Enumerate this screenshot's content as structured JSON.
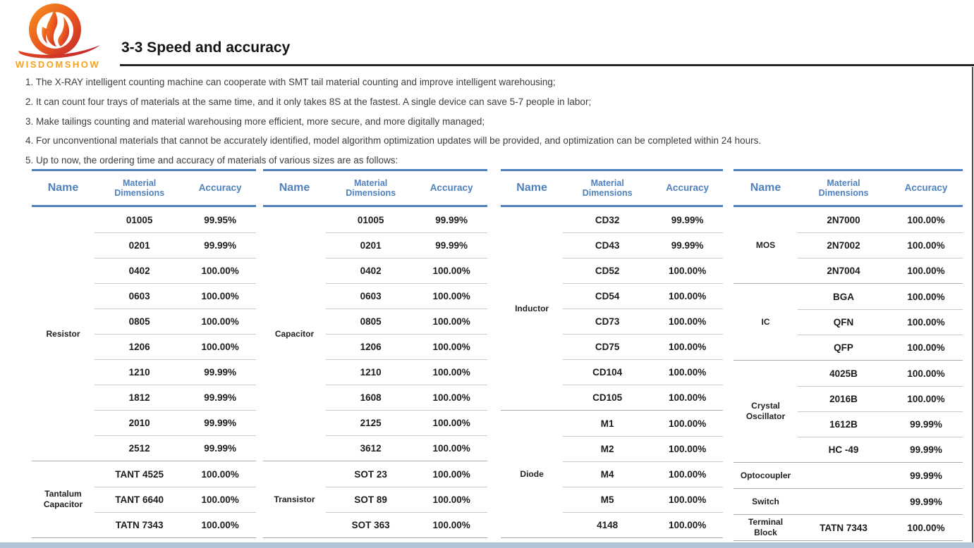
{
  "logo": {
    "text": "WISDOMSHOW",
    "color_orange": "#F7941D",
    "color_red": "#C1272D"
  },
  "header": {
    "title": "3-3 Speed and accuracy"
  },
  "intro": {
    "items": [
      "1. The X-RAY intelligent counting machine can cooperate with SMT tail material counting and improve intelligent warehousing;",
      "2. It can count four trays of materials at the same time, and it only takes 8S at the fastest. A single device can save 5-7 people in labor;",
      "3. Make tailings counting and material warehousing more efficient, more secure, and more digitally managed;",
      "4. For unconventional materials that cannot be accurately identified, model algorithm optimization updates will be provided, and optimization can be completed within 24 hours.",
      "5. Up to now, the ordering time and accuracy of materials of various sizes are as follows:"
    ]
  },
  "table_columns": {
    "name": "Name",
    "dimensions": "Material Dimensions",
    "accuracy": "Accuracy"
  },
  "colors": {
    "table_accent": "#4f81bd",
    "row_line": "#cbcbcb",
    "group_line": "#ababab",
    "bottom_band": "#b3c4d6"
  },
  "tables": [
    {
      "groups": [
        {
          "name": "Resistor",
          "rows": [
            {
              "dim": "01005",
              "acc": "99.95%"
            },
            {
              "dim": "0201",
              "acc": "99.99%"
            },
            {
              "dim": "0402",
              "acc": "100.00%"
            },
            {
              "dim": "0603",
              "acc": "100.00%"
            },
            {
              "dim": "0805",
              "acc": "100.00%"
            },
            {
              "dim": "1206",
              "acc": "100.00%"
            },
            {
              "dim": "1210",
              "acc": "99.99%"
            },
            {
              "dim": "1812",
              "acc": "99.99%"
            },
            {
              "dim": "2010",
              "acc": "99.99%"
            },
            {
              "dim": "2512",
              "acc": "99.99%"
            }
          ]
        },
        {
          "name": "Tantalum Capacitor",
          "rows": [
            {
              "dim": "TANT 4525",
              "acc": "100.00%"
            },
            {
              "dim": "TANT 6640",
              "acc": "100.00%"
            },
            {
              "dim": "TATN 7343",
              "acc": "100.00%"
            }
          ]
        }
      ]
    },
    {
      "groups": [
        {
          "name": "Capacitor",
          "rows": [
            {
              "dim": "01005",
              "acc": "99.99%"
            },
            {
              "dim": "0201",
              "acc": "99.99%"
            },
            {
              "dim": "0402",
              "acc": "100.00%"
            },
            {
              "dim": "0603",
              "acc": "100.00%"
            },
            {
              "dim": "0805",
              "acc": "100.00%"
            },
            {
              "dim": "1206",
              "acc": "100.00%"
            },
            {
              "dim": "1210",
              "acc": "100.00%"
            },
            {
              "dim": "1608",
              "acc": "100.00%"
            },
            {
              "dim": "2125",
              "acc": "100.00%"
            },
            {
              "dim": "3612",
              "acc": "100.00%"
            }
          ]
        },
        {
          "name": "Transistor",
          "rows": [
            {
              "dim": "SOT 23",
              "acc": "100.00%"
            },
            {
              "dim": "SOT 89",
              "acc": "100.00%"
            },
            {
              "dim": "SOT 363",
              "acc": "100.00%"
            }
          ]
        }
      ]
    },
    {
      "groups": [
        {
          "name": "Inductor",
          "rows": [
            {
              "dim": "CD32",
              "acc": "99.99%"
            },
            {
              "dim": "CD43",
              "acc": "99.99%"
            },
            {
              "dim": "CD52",
              "acc": "100.00%"
            },
            {
              "dim": "CD54",
              "acc": "100.00%"
            },
            {
              "dim": "CD73",
              "acc": "100.00%"
            },
            {
              "dim": "CD75",
              "acc": "100.00%"
            },
            {
              "dim": "CD104",
              "acc": "100.00%"
            },
            {
              "dim": "CD105",
              "acc": "100.00%"
            }
          ]
        },
        {
          "name": "Diode",
          "rows": [
            {
              "dim": "M1",
              "acc": "100.00%"
            },
            {
              "dim": "M2",
              "acc": "100.00%"
            },
            {
              "dim": "M4",
              "acc": "100.00%"
            },
            {
              "dim": "M5",
              "acc": "100.00%"
            },
            {
              "dim": "4148",
              "acc": "100.00%"
            }
          ]
        }
      ]
    },
    {
      "groups": [
        {
          "name": "MOS",
          "rows": [
            {
              "dim": "2N7000",
              "acc": "100.00%"
            },
            {
              "dim": "2N7002",
              "acc": "100.00%"
            },
            {
              "dim": "2N7004",
              "acc": "100.00%"
            }
          ]
        },
        {
          "name": "IC",
          "rows": [
            {
              "dim": "BGA",
              "acc": "100.00%"
            },
            {
              "dim": "QFN",
              "acc": "100.00%"
            },
            {
              "dim": "QFP",
              "acc": "100.00%"
            }
          ]
        },
        {
          "name": "Crystal Oscillator",
          "rows": [
            {
              "dim": "4025B",
              "acc": "100.00%"
            },
            {
              "dim": "2016B",
              "acc": "100.00%"
            },
            {
              "dim": "1612B",
              "acc": "99.99%"
            },
            {
              "dim": "HC -49",
              "acc": "99.99%"
            }
          ]
        },
        {
          "name": "Optocoupler",
          "rows": [
            {
              "dim": "",
              "acc": "99.99%"
            }
          ]
        },
        {
          "name": "Switch",
          "rows": [
            {
              "dim": "",
              "acc": "99.99%"
            }
          ]
        },
        {
          "name": "Terminal Block",
          "rows": [
            {
              "dim": "TATN 7343",
              "acc": "100.00%"
            }
          ]
        }
      ]
    }
  ]
}
